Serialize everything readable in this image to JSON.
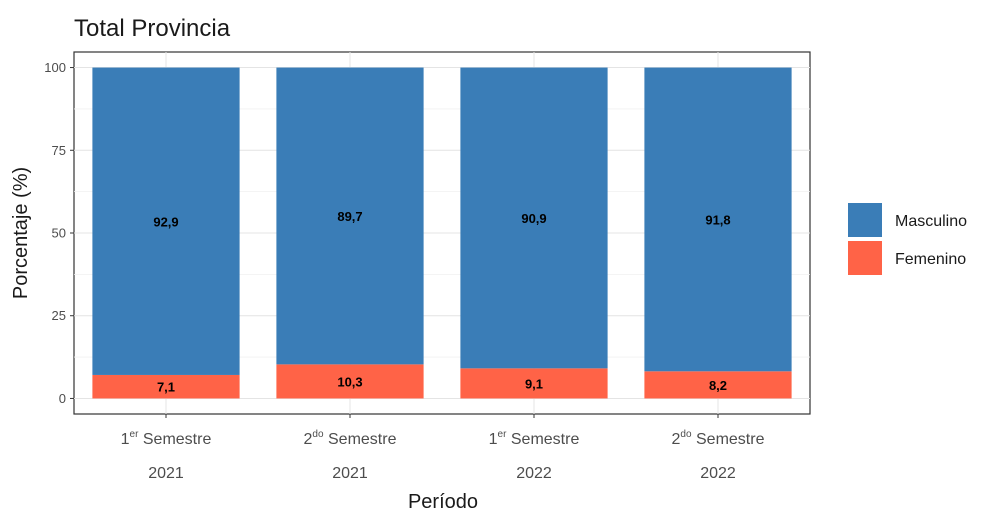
{
  "chart_data": {
    "type": "bar",
    "stacked": true,
    "title": "Total Provincia",
    "xlabel": "Período",
    "ylabel": "Porcentaje (%)",
    "ylim": [
      0,
      100
    ],
    "yticks": [
      0,
      25,
      50,
      75,
      100
    ],
    "grid": true,
    "legend_position": "right",
    "categories": [
      {
        "ordinal": "1",
        "suffix": "er",
        "word": "Semestre",
        "year": "2021"
      },
      {
        "ordinal": "2",
        "suffix": "do",
        "word": "Semestre",
        "year": "2021"
      },
      {
        "ordinal": "1",
        "suffix": "er",
        "word": "Semestre",
        "year": "2022"
      },
      {
        "ordinal": "2",
        "suffix": "do",
        "word": "Semestre",
        "year": "2022"
      }
    ],
    "series": [
      {
        "name": "Femenino",
        "color": "#ff6347",
        "values": [
          7.1,
          10.3,
          9.1,
          8.2
        ],
        "labels": [
          "7,1",
          "10,3",
          "9,1",
          "8,2"
        ]
      },
      {
        "name": "Masculino",
        "color": "#3a7db7",
        "values": [
          92.9,
          89.7,
          90.9,
          91.8
        ],
        "labels": [
          "92,9",
          "89,7",
          "90,9",
          "91,8"
        ]
      }
    ],
    "legend_order": [
      "Masculino",
      "Femenino"
    ]
  }
}
